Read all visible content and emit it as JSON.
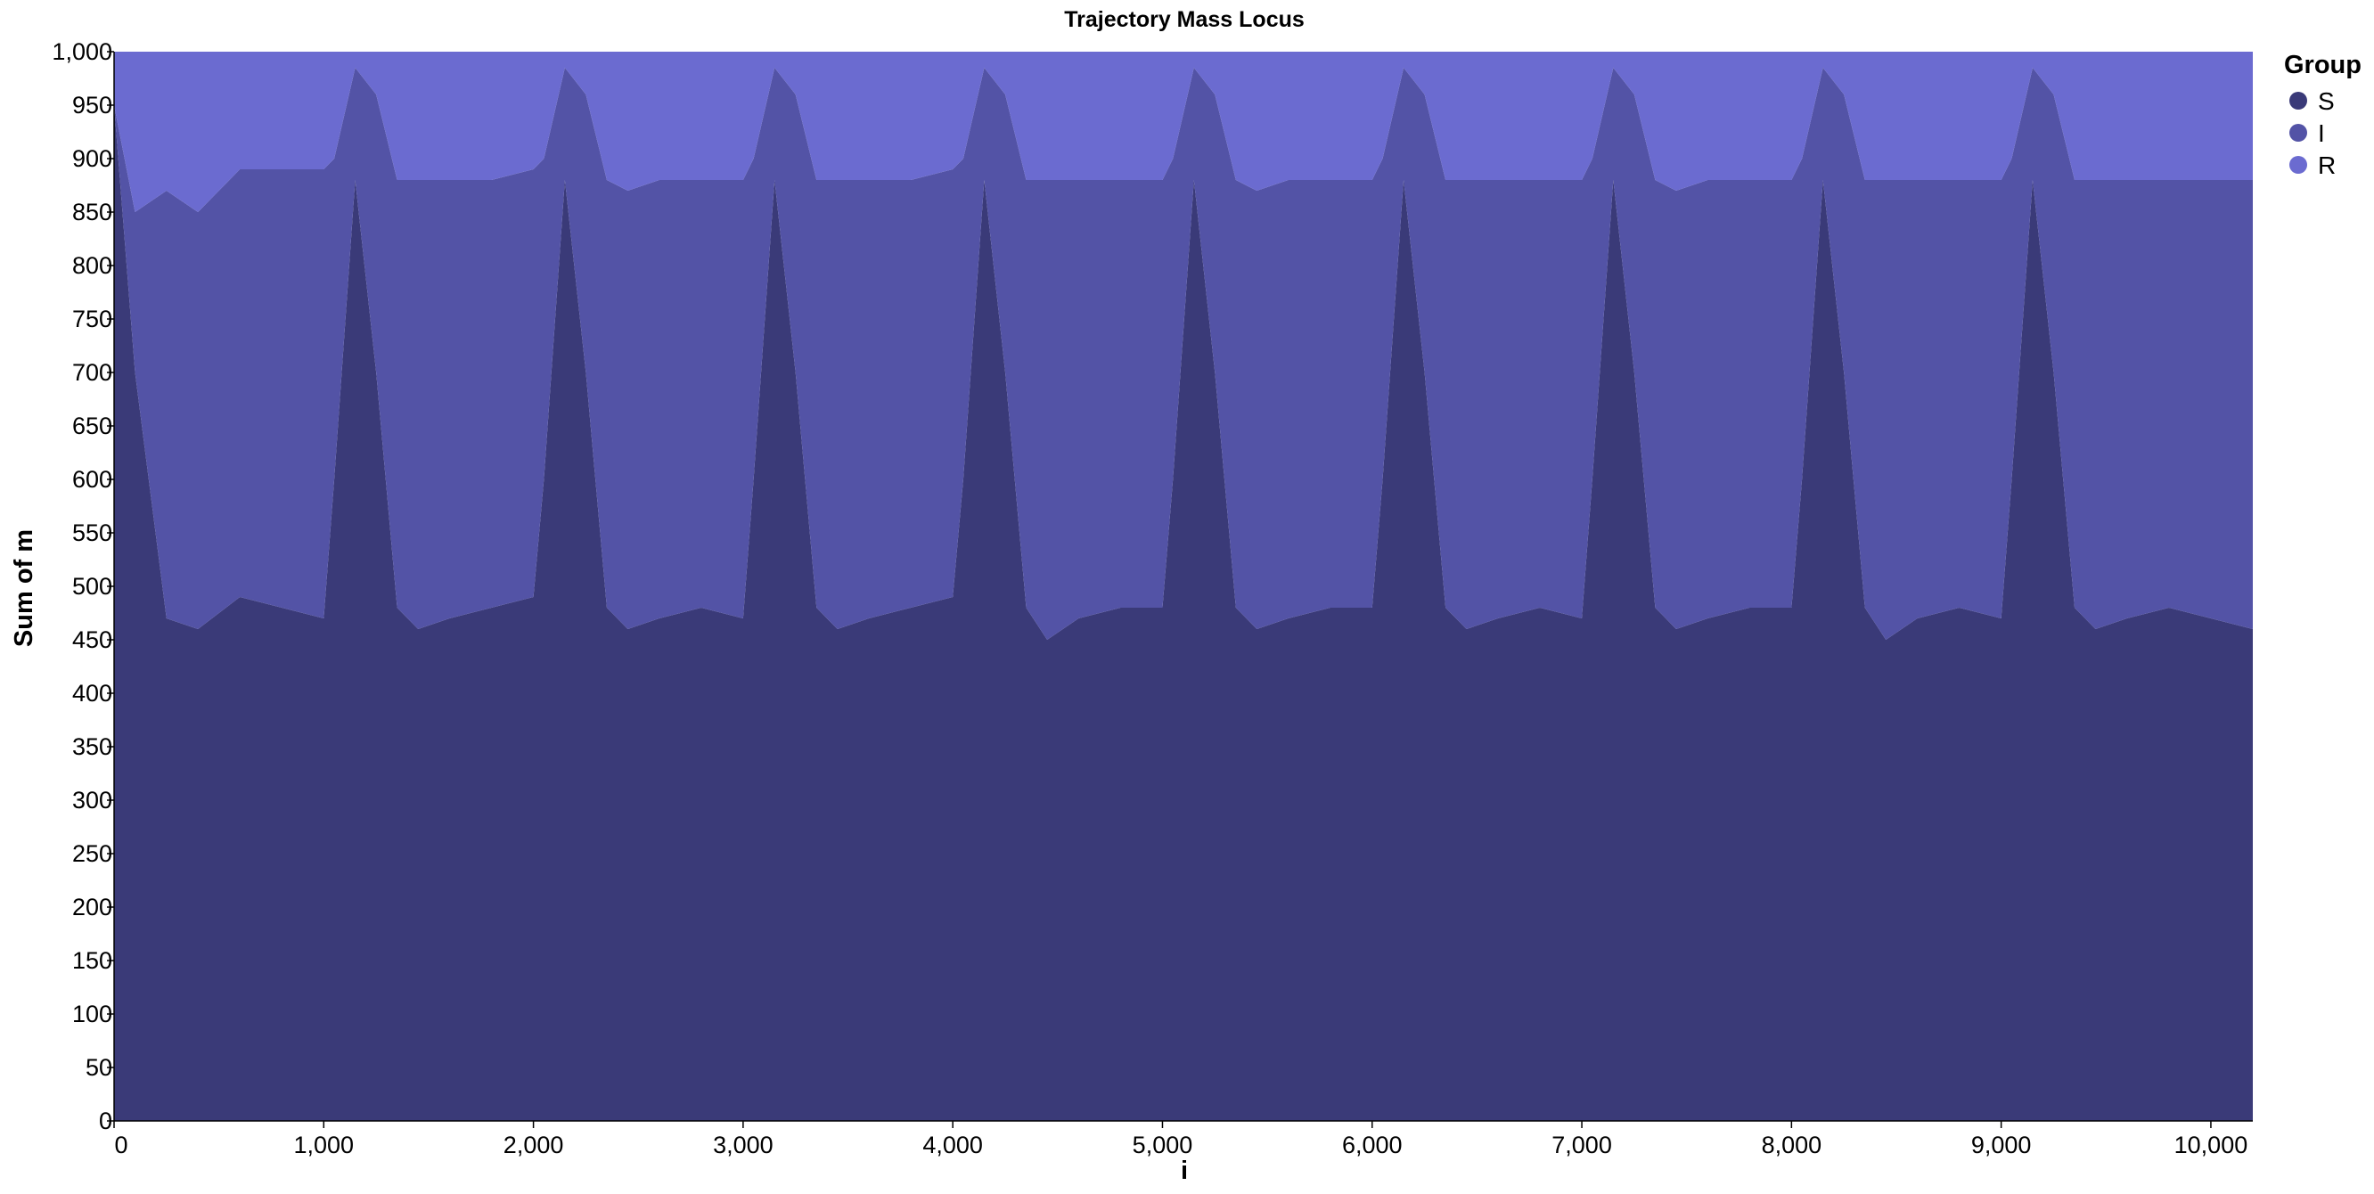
{
  "chart_data": {
    "type": "area",
    "stacked": true,
    "title": "Trajectory Mass Locus",
    "xlabel": "i",
    "ylabel": "Sum of m",
    "xlim": [
      0,
      10200
    ],
    "ylim": [
      0,
      1000
    ],
    "x_ticks": [
      0,
      1000,
      2000,
      3000,
      4000,
      5000,
      6000,
      7000,
      8000,
      9000,
      10000
    ],
    "x_tick_labels": [
      "0",
      "1,000",
      "2,000",
      "3,000",
      "4,000",
      "5,000",
      "6,000",
      "7,000",
      "8,000",
      "9,000",
      "10,000"
    ],
    "y_ticks": [
      0,
      50,
      100,
      150,
      200,
      250,
      300,
      350,
      400,
      450,
      500,
      550,
      600,
      650,
      700,
      750,
      800,
      850,
      900,
      950,
      1000
    ],
    "y_tick_labels": [
      "0",
      "50",
      "100",
      "150",
      "200",
      "250",
      "300",
      "350",
      "400",
      "450",
      "500",
      "550",
      "600",
      "650",
      "700",
      "750",
      "800",
      "850",
      "900",
      "950",
      "1,000"
    ],
    "grid": false,
    "legend": {
      "title": "Group",
      "position": "right"
    },
    "x": [
      0,
      100,
      250,
      400,
      600,
      800,
      1000,
      1050,
      1150,
      1250,
      1350,
      1450,
      1600,
      1800,
      2000,
      2050,
      2150,
      2250,
      2350,
      2450,
      2600,
      2800,
      3000,
      3050,
      3150,
      3250,
      3350,
      3450,
      3600,
      3800,
      4000,
      4050,
      4150,
      4250,
      4350,
      4450,
      4600,
      4800,
      5000,
      5050,
      5150,
      5250,
      5350,
      5450,
      5600,
      5800,
      6000,
      6050,
      6150,
      6250,
      6350,
      6450,
      6600,
      6800,
      7000,
      7050,
      7150,
      7250,
      7350,
      7450,
      7600,
      7800,
      8000,
      8050,
      8150,
      8250,
      8350,
      8450,
      8600,
      8800,
      9000,
      9050,
      9150,
      9250,
      9350,
      9450,
      9600,
      9800,
      10000,
      10200
    ],
    "series": [
      {
        "name": "S",
        "color": "#3a3a78",
        "values": [
          950,
          700,
          470,
          460,
          490,
          480,
          470,
          600,
          880,
          700,
          480,
          460,
          470,
          480,
          490,
          600,
          880,
          700,
          480,
          460,
          470,
          480,
          470,
          600,
          880,
          700,
          480,
          460,
          470,
          480,
          490,
          600,
          880,
          700,
          480,
          450,
          470,
          480,
          480,
          600,
          880,
          700,
          480,
          460,
          470,
          480,
          480,
          600,
          880,
          700,
          480,
          460,
          470,
          480,
          470,
          600,
          880,
          700,
          480,
          460,
          470,
          480,
          480,
          600,
          880,
          700,
          480,
          450,
          470,
          480,
          470,
          600,
          880,
          700,
          480,
          460,
          470,
          480,
          470,
          460
        ]
      },
      {
        "name": "I",
        "color": "#5353a6",
        "values": [
          0,
          150,
          400,
          390,
          400,
          410,
          420,
          300,
          105,
          260,
          400,
          420,
          410,
          400,
          400,
          300,
          105,
          260,
          400,
          410,
          410,
          400,
          410,
          300,
          105,
          260,
          400,
          420,
          410,
          400,
          400,
          300,
          105,
          260,
          400,
          430,
          410,
          400,
          400,
          300,
          105,
          260,
          400,
          410,
          410,
          400,
          400,
          300,
          105,
          260,
          400,
          420,
          410,
          400,
          410,
          300,
          105,
          260,
          400,
          410,
          410,
          400,
          400,
          300,
          105,
          260,
          400,
          430,
          410,
          400,
          410,
          300,
          105,
          260,
          400,
          420,
          410,
          400,
          410,
          420
        ]
      },
      {
        "name": "R",
        "color": "#6b6bd0",
        "values": [
          50,
          150,
          130,
          150,
          110,
          110,
          110,
          100,
          15,
          40,
          120,
          120,
          120,
          120,
          110,
          100,
          15,
          40,
          120,
          130,
          120,
          120,
          120,
          100,
          15,
          40,
          120,
          120,
          120,
          120,
          110,
          100,
          15,
          40,
          120,
          120,
          120,
          120,
          120,
          100,
          15,
          40,
          120,
          130,
          120,
          120,
          120,
          100,
          15,
          40,
          120,
          120,
          120,
          120,
          120,
          100,
          15,
          40,
          120,
          130,
          120,
          120,
          120,
          100,
          15,
          40,
          120,
          120,
          120,
          120,
          120,
          100,
          15,
          40,
          120,
          120,
          120,
          120,
          120,
          120
        ]
      }
    ]
  }
}
